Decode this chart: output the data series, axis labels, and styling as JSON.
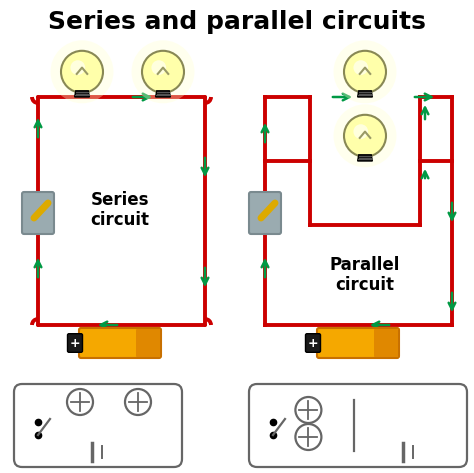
{
  "title": "Series and parallel circuits",
  "title_fontsize": 18,
  "title_fontweight": "bold",
  "bg_color": "#ffffff",
  "series_label": "Series\ncircuit",
  "parallel_label": "Parallel\ncircuit",
  "wire_color": "#cc0000",
  "arrow_color": "#009944",
  "schematic_color": "#666666",
  "battery_gold": "#f5a800",
  "battery_dark_gold": "#c87000",
  "battery_black": "#1a1a1a",
  "switch_gray": "#9aabb0",
  "switch_dark": "#7a8a8f",
  "switch_lever": "#ddaa00",
  "bulb_glow_outer": "#ffffd0",
  "bulb_glow_inner": "#ffff80",
  "bulb_glass": "#ffffaa",
  "bulb_base_dark": "#1a1a1a",
  "bulb_filament": "#999966"
}
